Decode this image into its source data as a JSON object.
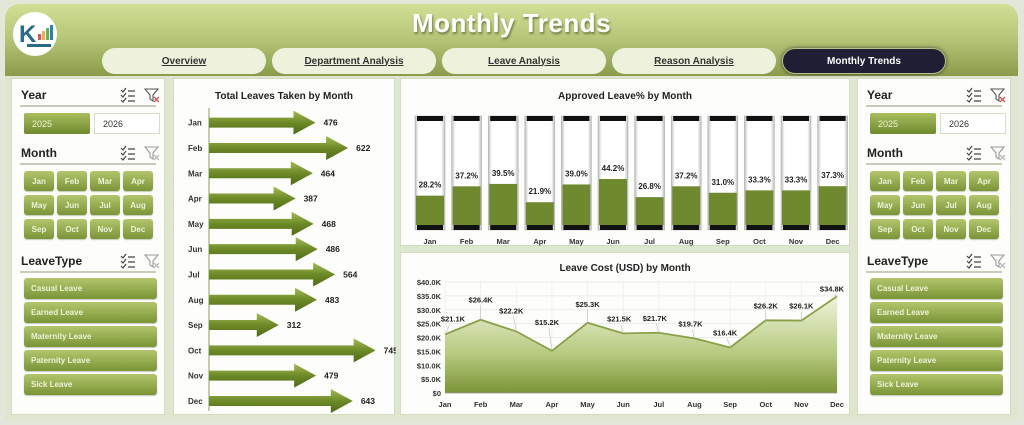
{
  "header": {
    "title": "Monthly Trends",
    "logo": "kpi-logo",
    "tabs": [
      {
        "label": "Overview",
        "active": false
      },
      {
        "label": "Department Analysis",
        "active": false
      },
      {
        "label": "Leave Analysis",
        "active": false
      },
      {
        "label": "Reason Analysis",
        "active": false
      },
      {
        "label": "Monthly Trends",
        "active": true
      }
    ]
  },
  "slicers": {
    "year": {
      "label": "Year",
      "options": [
        "2025",
        "2026"
      ],
      "selected": "2025",
      "icons": [
        "multi-select-icon",
        "clear-filter-icon"
      ]
    },
    "month": {
      "label": "Month",
      "options": [
        "Jan",
        "Feb",
        "Mar",
        "Apr",
        "May",
        "Jun",
        "Jul",
        "Aug",
        "Sep",
        "Oct",
        "Nov",
        "Dec"
      ],
      "icons": [
        "multi-select-icon",
        "clear-filter-icon"
      ]
    },
    "leavetype": {
      "label": "LeaveType",
      "options": [
        "Casual Leave",
        "Earned Leave",
        "Maternity Leave",
        "Paternity Leave",
        "Sick Leave"
      ],
      "icons": [
        "multi-select-icon",
        "clear-filter-icon"
      ]
    }
  },
  "colors": {
    "accent_green": "#6f8a2e",
    "header_light": "#cfdf94",
    "active_tab": "#1e1e35",
    "filter_clear_red": "#d9534f"
  },
  "chart_data": [
    {
      "type": "bar",
      "orientation": "horizontal",
      "title": "Total Leaves Taken by Month",
      "categories": [
        "Jan",
        "Feb",
        "Mar",
        "Apr",
        "May",
        "Jun",
        "Jul",
        "Aug",
        "Sep",
        "Oct",
        "Nov",
        "Dec"
      ],
      "values": [
        476,
        622,
        464,
        387,
        468,
        486,
        564,
        483,
        312,
        745,
        479,
        643
      ],
      "xlabel": "",
      "ylabel": "",
      "grid": false
    },
    {
      "type": "bar",
      "title": "Approved Leave% by Month",
      "categories": [
        "Jan",
        "Feb",
        "Mar",
        "Apr",
        "May",
        "Jun",
        "Jul",
        "Aug",
        "Sep",
        "Oct",
        "Nov",
        "Dec"
      ],
      "values": [
        28.2,
        37.2,
        39.5,
        21.9,
        39.0,
        44.2,
        26.8,
        37.2,
        31.0,
        33.3,
        33.3,
        37.3
      ],
      "labels": [
        "28.2%",
        "37.2%",
        "39.5%",
        "21.9%",
        "39.0%",
        "44.2%",
        "26.8%",
        "37.2%",
        "31.0%",
        "33.3%",
        "33.3%",
        "37.3%"
      ],
      "ylim": [
        0,
        100
      ],
      "grid": false
    },
    {
      "type": "area",
      "title": "Leave Cost (USD) by Month",
      "categories": [
        "Jan",
        "Feb",
        "Mar",
        "Apr",
        "May",
        "Jun",
        "Jul",
        "Aug",
        "Sep",
        "Oct",
        "Nov",
        "Dec"
      ],
      "values": [
        21.1,
        26.4,
        22.2,
        15.2,
        25.3,
        21.5,
        21.7,
        19.7,
        16.4,
        26.2,
        26.1,
        34.8
      ],
      "labels": [
        "$21.1K",
        "$26.4K",
        "$22.2K",
        "$15.2K",
        "$25.3K",
        "$21.5K",
        "$21.7K",
        "$19.7K",
        "$16.4K",
        "$26.2K",
        "$26.1K",
        "$34.8K"
      ],
      "yticks": [
        "$0",
        "$5.0K",
        "$10.0K",
        "$15.0K",
        "$20.0K",
        "$25.0K",
        "$30.0K",
        "$35.0K",
        "$40.0K"
      ],
      "ylim": [
        0,
        40
      ],
      "unit": "K USD",
      "grid": true
    }
  ]
}
